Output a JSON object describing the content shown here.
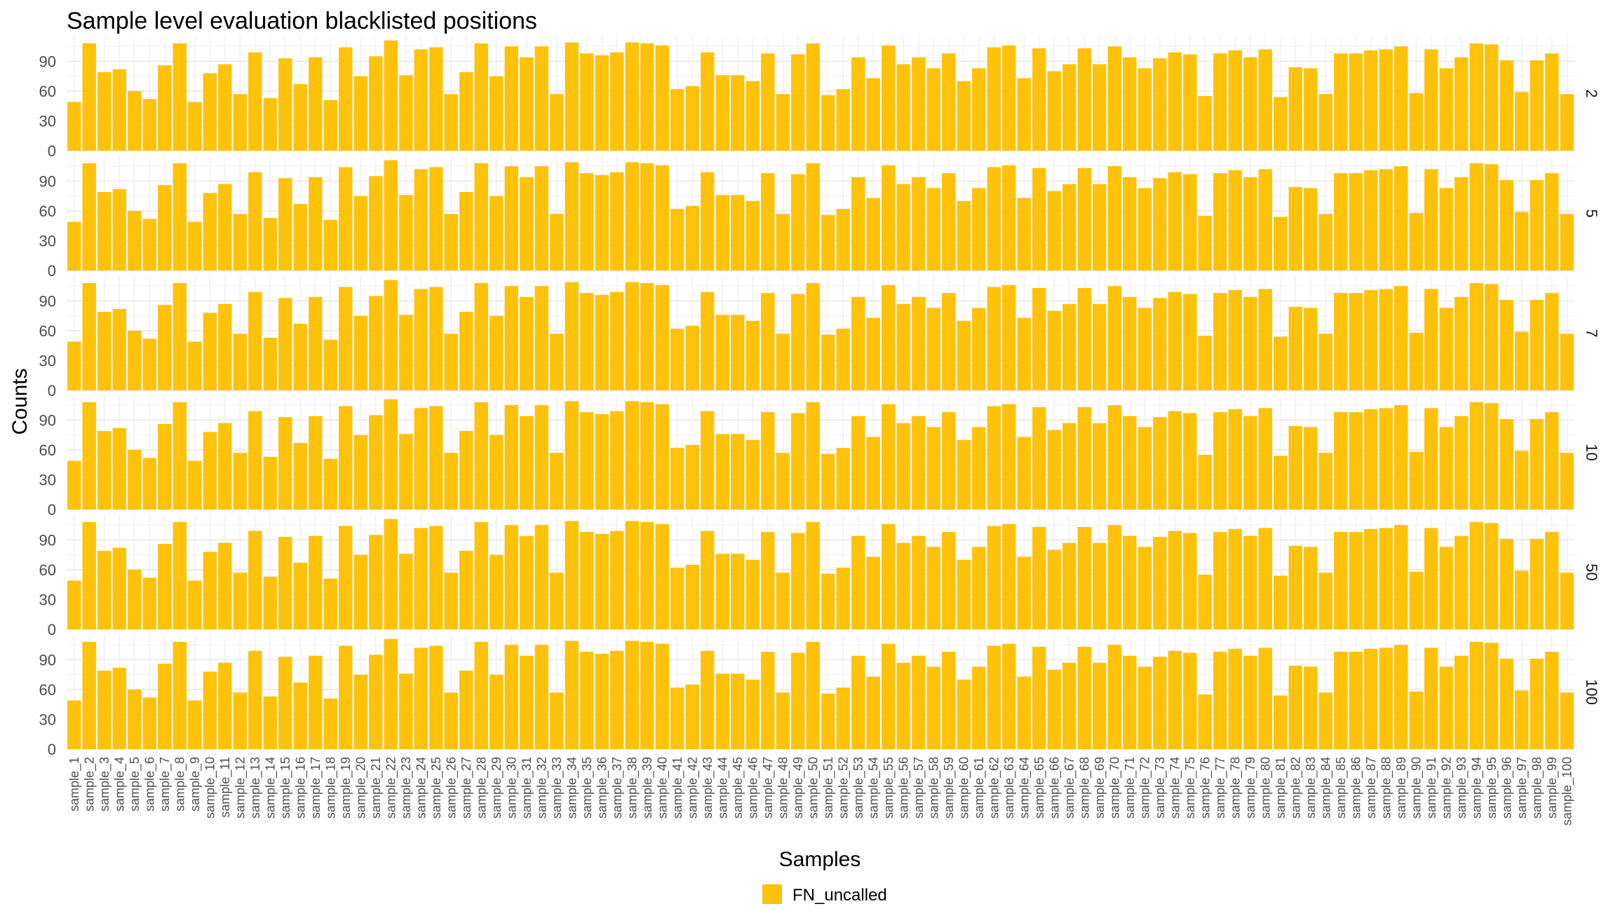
{
  "chart_data": {
    "type": "bar",
    "title": "Sample level evaluation blacklisted positions",
    "xlabel": "Samples",
    "ylabel": "Counts",
    "ylim": [
      0,
      115
    ],
    "yticks": [
      0,
      30,
      60,
      90
    ],
    "grid": true,
    "legend_position": "bottom",
    "legend": [
      {
        "name": "FN_uncalled",
        "color": "#FFC20A"
      }
    ],
    "bar_color": "#FFC20A",
    "facets": [
      "2",
      "5",
      "7",
      "10",
      "50",
      "100"
    ],
    "categories": [
      "sample_1",
      "sample_2",
      "sample_3",
      "sample_4",
      "sample_5",
      "sample_6",
      "sample_7",
      "sample_8",
      "sample_9",
      "sample_10",
      "sample_11",
      "sample_12",
      "sample_13",
      "sample_14",
      "sample_15",
      "sample_16",
      "sample_17",
      "sample_18",
      "sample_19",
      "sample_20",
      "sample_21",
      "sample_22",
      "sample_23",
      "sample_24",
      "sample_25",
      "sample_26",
      "sample_27",
      "sample_28",
      "sample_29",
      "sample_30",
      "sample_31",
      "sample_32",
      "sample_33",
      "sample_34",
      "sample_35",
      "sample_36",
      "sample_37",
      "sample_38",
      "sample_39",
      "sample_40",
      "sample_41",
      "sample_42",
      "sample_43",
      "sample_44",
      "sample_45",
      "sample_46",
      "sample_47",
      "sample_48",
      "sample_49",
      "sample_50",
      "sample_51",
      "sample_52",
      "sample_53",
      "sample_54",
      "sample_55",
      "sample_56",
      "sample_57",
      "sample_58",
      "sample_59",
      "sample_60",
      "sample_61",
      "sample_62",
      "sample_63",
      "sample_64",
      "sample_65",
      "sample_66",
      "sample_67",
      "sample_68",
      "sample_69",
      "sample_70",
      "sample_71",
      "sample_72",
      "sample_73",
      "sample_74",
      "sample_75",
      "sample_76",
      "sample_77",
      "sample_78",
      "sample_79",
      "sample_80",
      "sample_81",
      "sample_82",
      "sample_83",
      "sample_84",
      "sample_85",
      "sample_86",
      "sample_87",
      "sample_88",
      "sample_89",
      "sample_90",
      "sample_91",
      "sample_92",
      "sample_93",
      "sample_94",
      "sample_95",
      "sample_96",
      "sample_97",
      "sample_98",
      "sample_99",
      "sample_100"
    ],
    "values": [
      49,
      108,
      79,
      82,
      60,
      52,
      86,
      108,
      49,
      78,
      87,
      57,
      99,
      53,
      93,
      67,
      94,
      51,
      104,
      75,
      95,
      111,
      76,
      102,
      104,
      57,
      79,
      108,
      75,
      105,
      94,
      105,
      57,
      109,
      98,
      96,
      99,
      109,
      108,
      106,
      62,
      65,
      99,
      76,
      76,
      70,
      98,
      57,
      97,
      108,
      56,
      62,
      94,
      73,
      106,
      87,
      94,
      83,
      98,
      70,
      83,
      104,
      106,
      73,
      103,
      80,
      87,
      103,
      87,
      105,
      94,
      83,
      93,
      99,
      97,
      55,
      98,
      101,
      94,
      102,
      54,
      84,
      83,
      57,
      98,
      98,
      101,
      102,
      105,
      58,
      102,
      83,
      94,
      108,
      107,
      91,
      59,
      91,
      98,
      57
    ]
  }
}
